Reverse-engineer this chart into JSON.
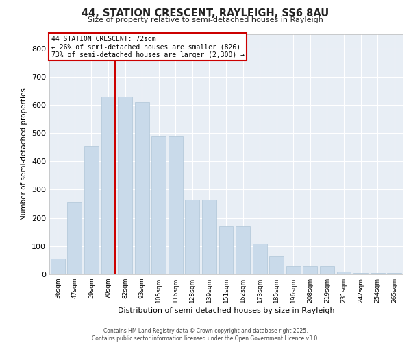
{
  "title1": "44, STATION CRESCENT, RAYLEIGH, SS6 8AU",
  "title2": "Size of property relative to semi-detached houses in Rayleigh",
  "xlabel": "Distribution of semi-detached houses by size in Rayleigh",
  "ylabel": "Number of semi-detached properties",
  "categories": [
    "36sqm",
    "47sqm",
    "59sqm",
    "70sqm",
    "82sqm",
    "93sqm",
    "105sqm",
    "116sqm",
    "128sqm",
    "139sqm",
    "151sqm",
    "162sqm",
    "173sqm",
    "185sqm",
    "196sqm",
    "208sqm",
    "219sqm",
    "231sqm",
    "242sqm",
    "254sqm",
    "265sqm"
  ],
  "values": [
    55,
    255,
    455,
    630,
    630,
    610,
    490,
    490,
    265,
    265,
    170,
    170,
    110,
    65,
    30,
    30,
    30,
    10,
    6,
    6,
    5
  ],
  "bar_color": "#c9daea",
  "bar_edge_color": "#afc6d8",
  "vline_pos": 3.42,
  "vline_color": "#cc0000",
  "annotation_title": "44 STATION CRESCENT: 72sqm",
  "annotation_line2": "← 26% of semi-detached houses are smaller (826)",
  "annotation_line3": "73% of semi-detached houses are larger (2,300) →",
  "annotation_box_color": "#ffffff",
  "annotation_box_edge_color": "#cc0000",
  "ylim": [
    0,
    850
  ],
  "yticks": [
    0,
    100,
    200,
    300,
    400,
    500,
    600,
    700,
    800
  ],
  "background_color": "#e8eef5",
  "footer_line1": "Contains HM Land Registry data © Crown copyright and database right 2025.",
  "footer_line2": "Contains public sector information licensed under the Open Government Licence v3.0."
}
